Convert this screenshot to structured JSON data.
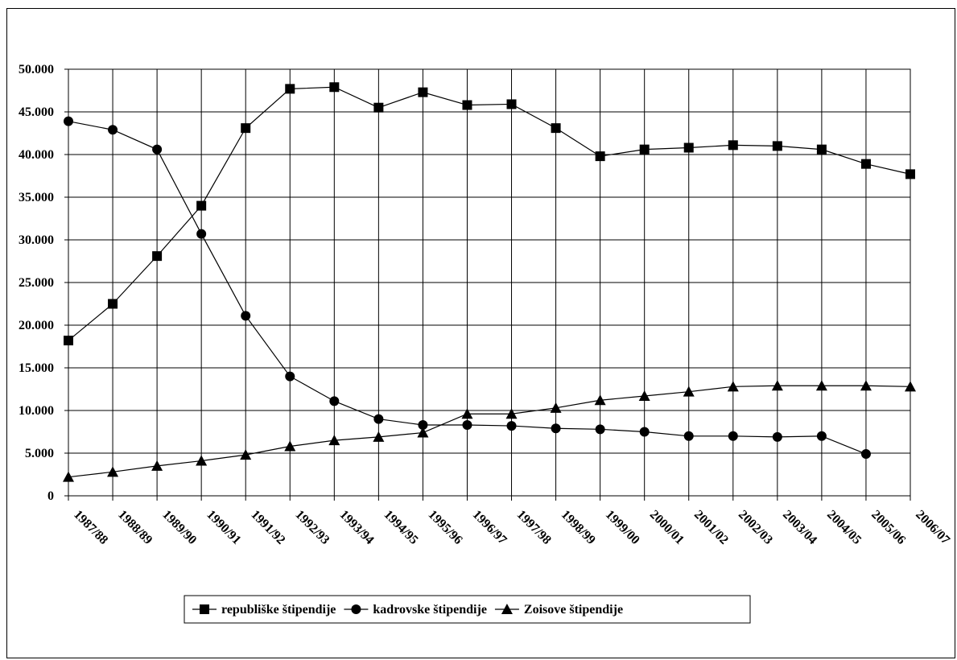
{
  "chart_data": {
    "type": "line",
    "title": "",
    "xlabel": "",
    "ylabel": "",
    "ylim": [
      0,
      50000
    ],
    "ytick_values": [
      0,
      5000,
      10000,
      15000,
      20000,
      25000,
      30000,
      35000,
      40000,
      45000,
      50000
    ],
    "ytick_labels": [
      "0",
      "5.000",
      "10.000",
      "15.000",
      "20.000",
      "25.000",
      "30.000",
      "35.000",
      "40.000",
      "45.000",
      "50.000"
    ],
    "grid": true,
    "legend_position": "bottom-center",
    "categories": [
      "1987/88",
      "1988/89",
      "1989/90",
      "1990/91",
      "1991/92",
      "1992/93",
      "1993/94",
      "1994/95",
      "1995/96",
      "1996/97",
      "1997/98",
      "1998/99",
      "1999/00",
      "2000/01",
      "2001/02",
      "2002/03",
      "2003/04",
      "2004/05",
      "2005/06",
      "2006/07"
    ],
    "series": [
      {
        "name": "republiške štipendije",
        "marker": "square",
        "values": [
          18200,
          22500,
          28100,
          34000,
          43100,
          47700,
          47900,
          45500,
          47300,
          45800,
          45900,
          43100,
          39800,
          40600,
          40800,
          41100,
          41000,
          40600,
          38900,
          37700
        ]
      },
      {
        "name": "kadrovske štipendije",
        "marker": "circle",
        "values": [
          43900,
          42900,
          40600,
          30700,
          21100,
          14000,
          11100,
          9000,
          8300,
          8300,
          8200,
          7900,
          7800,
          7500,
          7000,
          7000,
          6900,
          7000,
          4900,
          null
        ]
      },
      {
        "name": "Zoisove štipendije",
        "marker": "triangle",
        "values": [
          2200,
          2800,
          3500,
          4100,
          4800,
          5800,
          6500,
          6900,
          7400,
          9600,
          9600,
          10300,
          11200,
          11700,
          12200,
          12800,
          12900,
          12900,
          12900,
          12800
        ]
      }
    ]
  },
  "colors": {
    "line": "#000000",
    "grid": "#000000",
    "background": "#ffffff"
  }
}
